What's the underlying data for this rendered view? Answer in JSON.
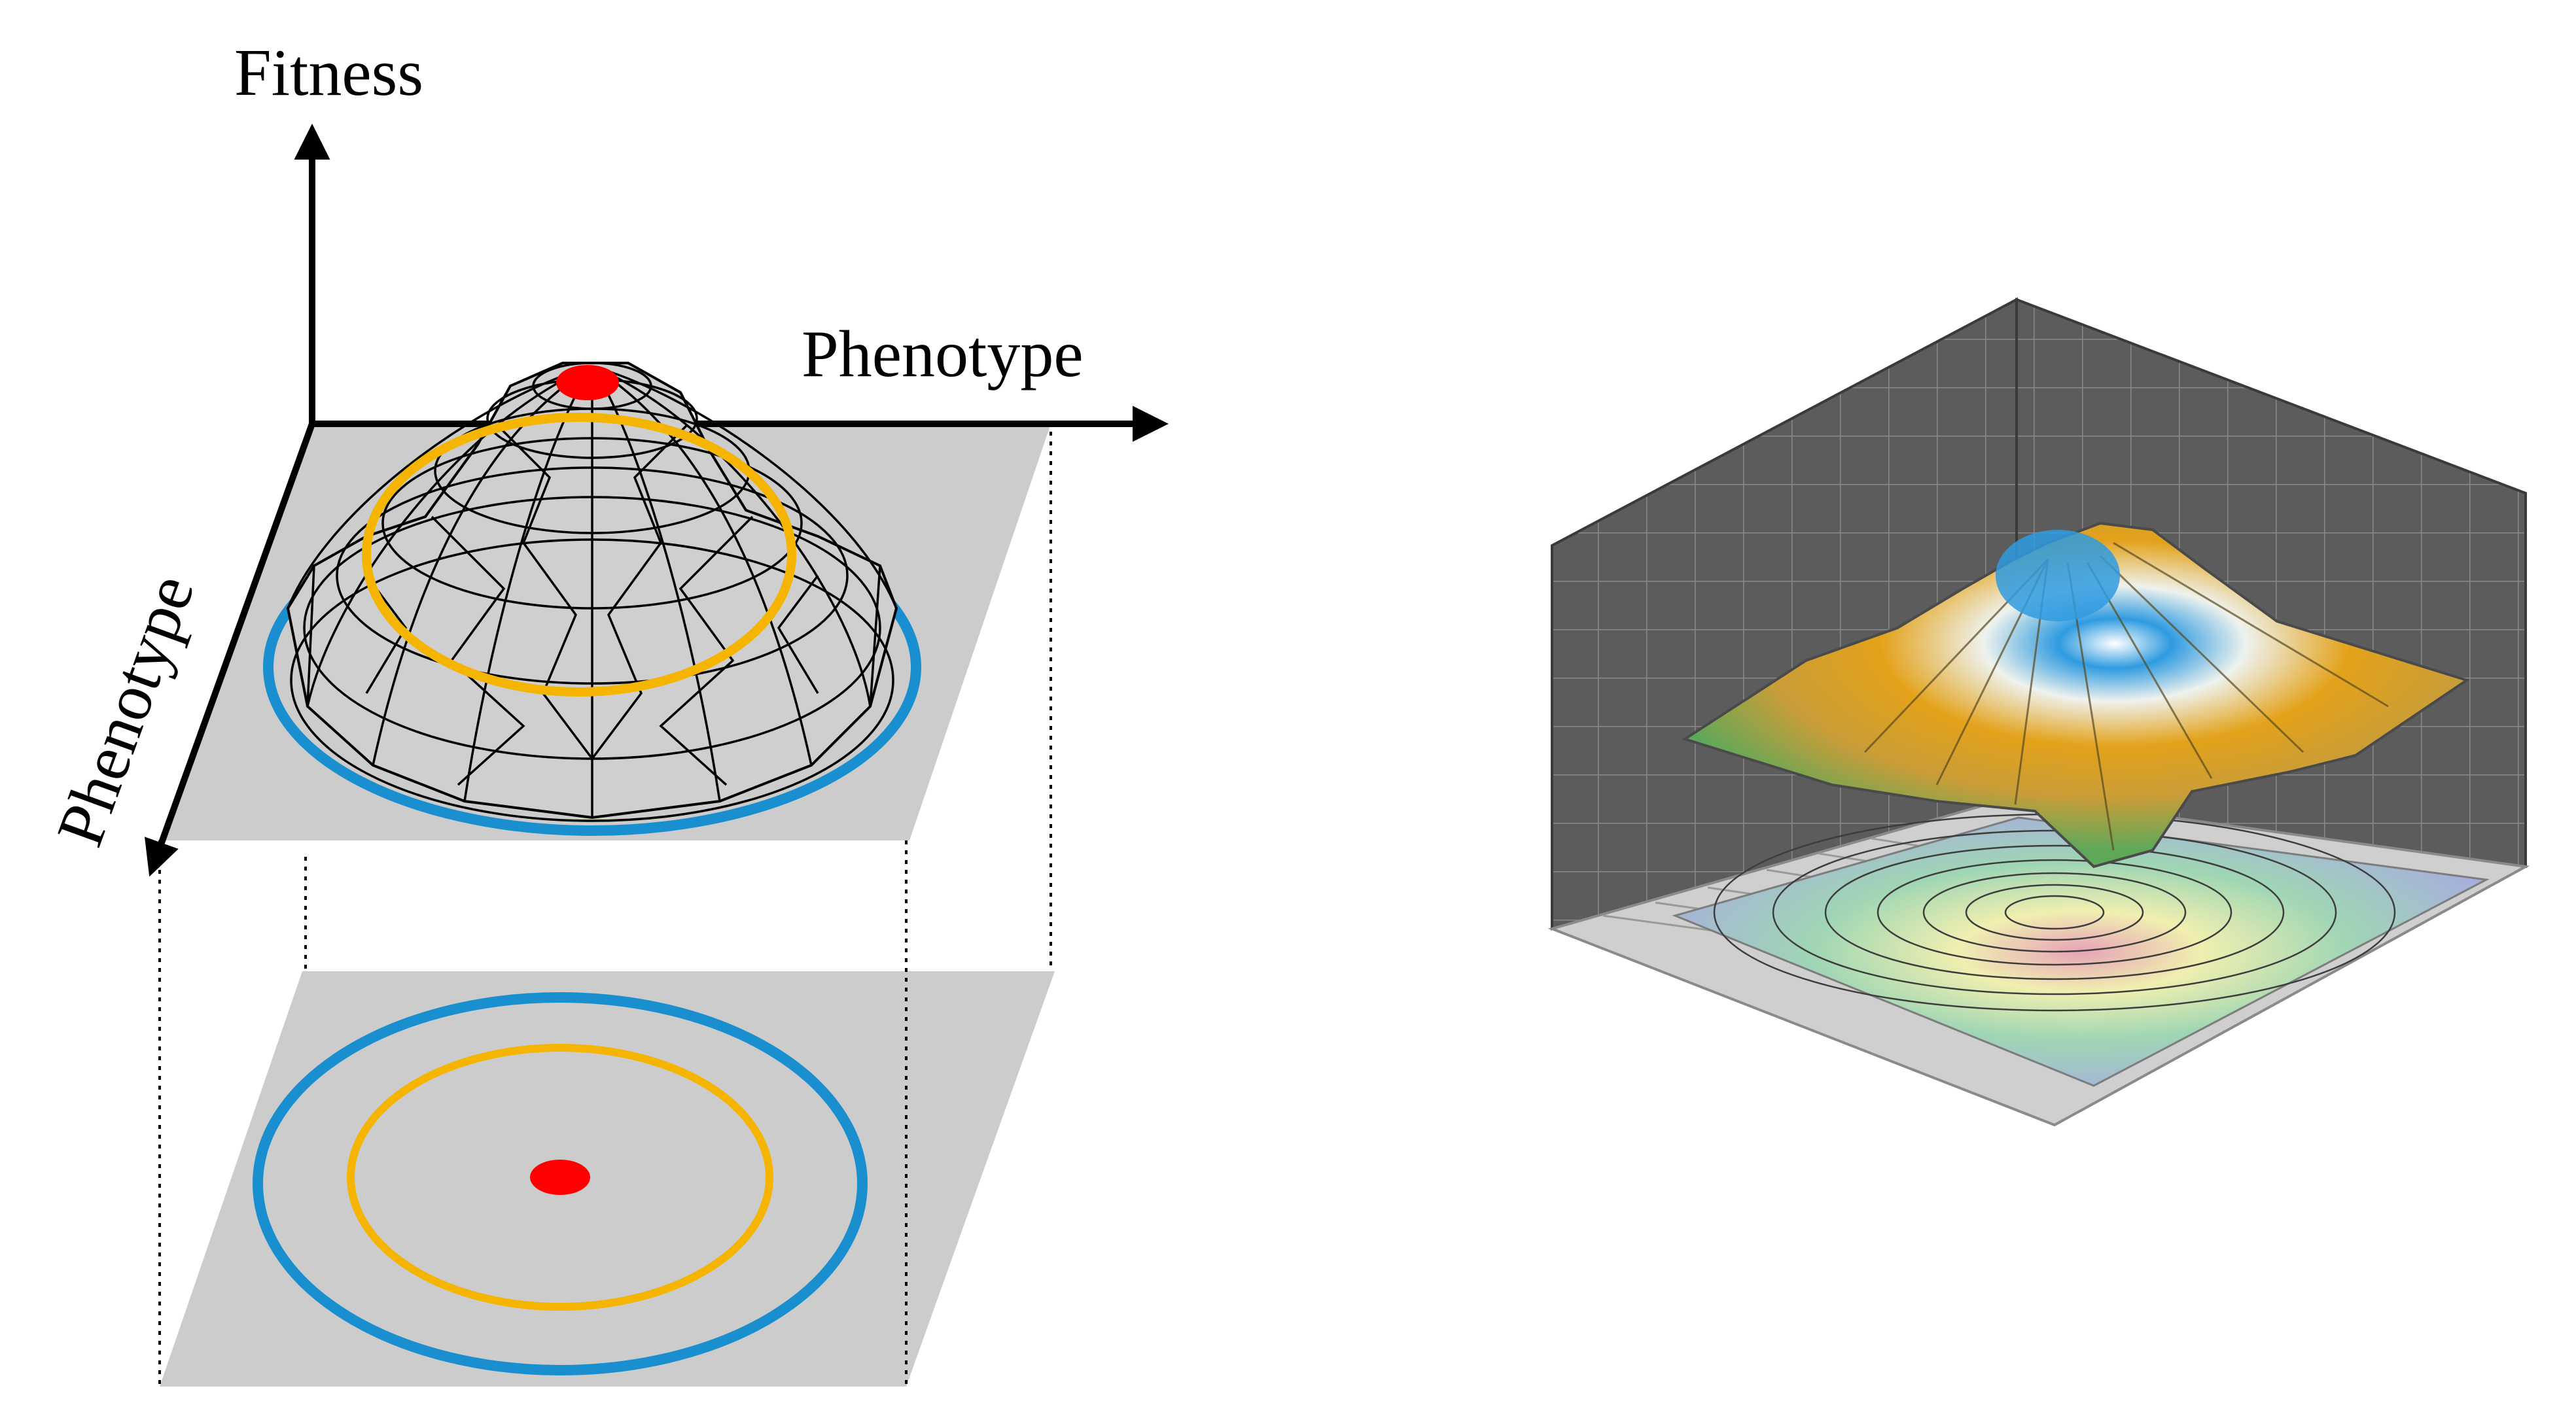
{
  "left_panel": {
    "fitness_label": "Fitness",
    "phenotype_x_label": "Phenotype",
    "phenotype_y_label": "Phenotype",
    "colors": {
      "plane": "#cccccc",
      "mesh": "#000000",
      "blue_contour": "#1a8fd0",
      "orange_contour": "#f5b400",
      "peak": "#ff0000"
    }
  },
  "right_panel": {
    "colors": {
      "wall": "#5c5c5c",
      "floor": "#cfcfcf",
      "peak": "#2f9be0",
      "slope": "#e3a21a",
      "base": "#5fa85a"
    }
  }
}
